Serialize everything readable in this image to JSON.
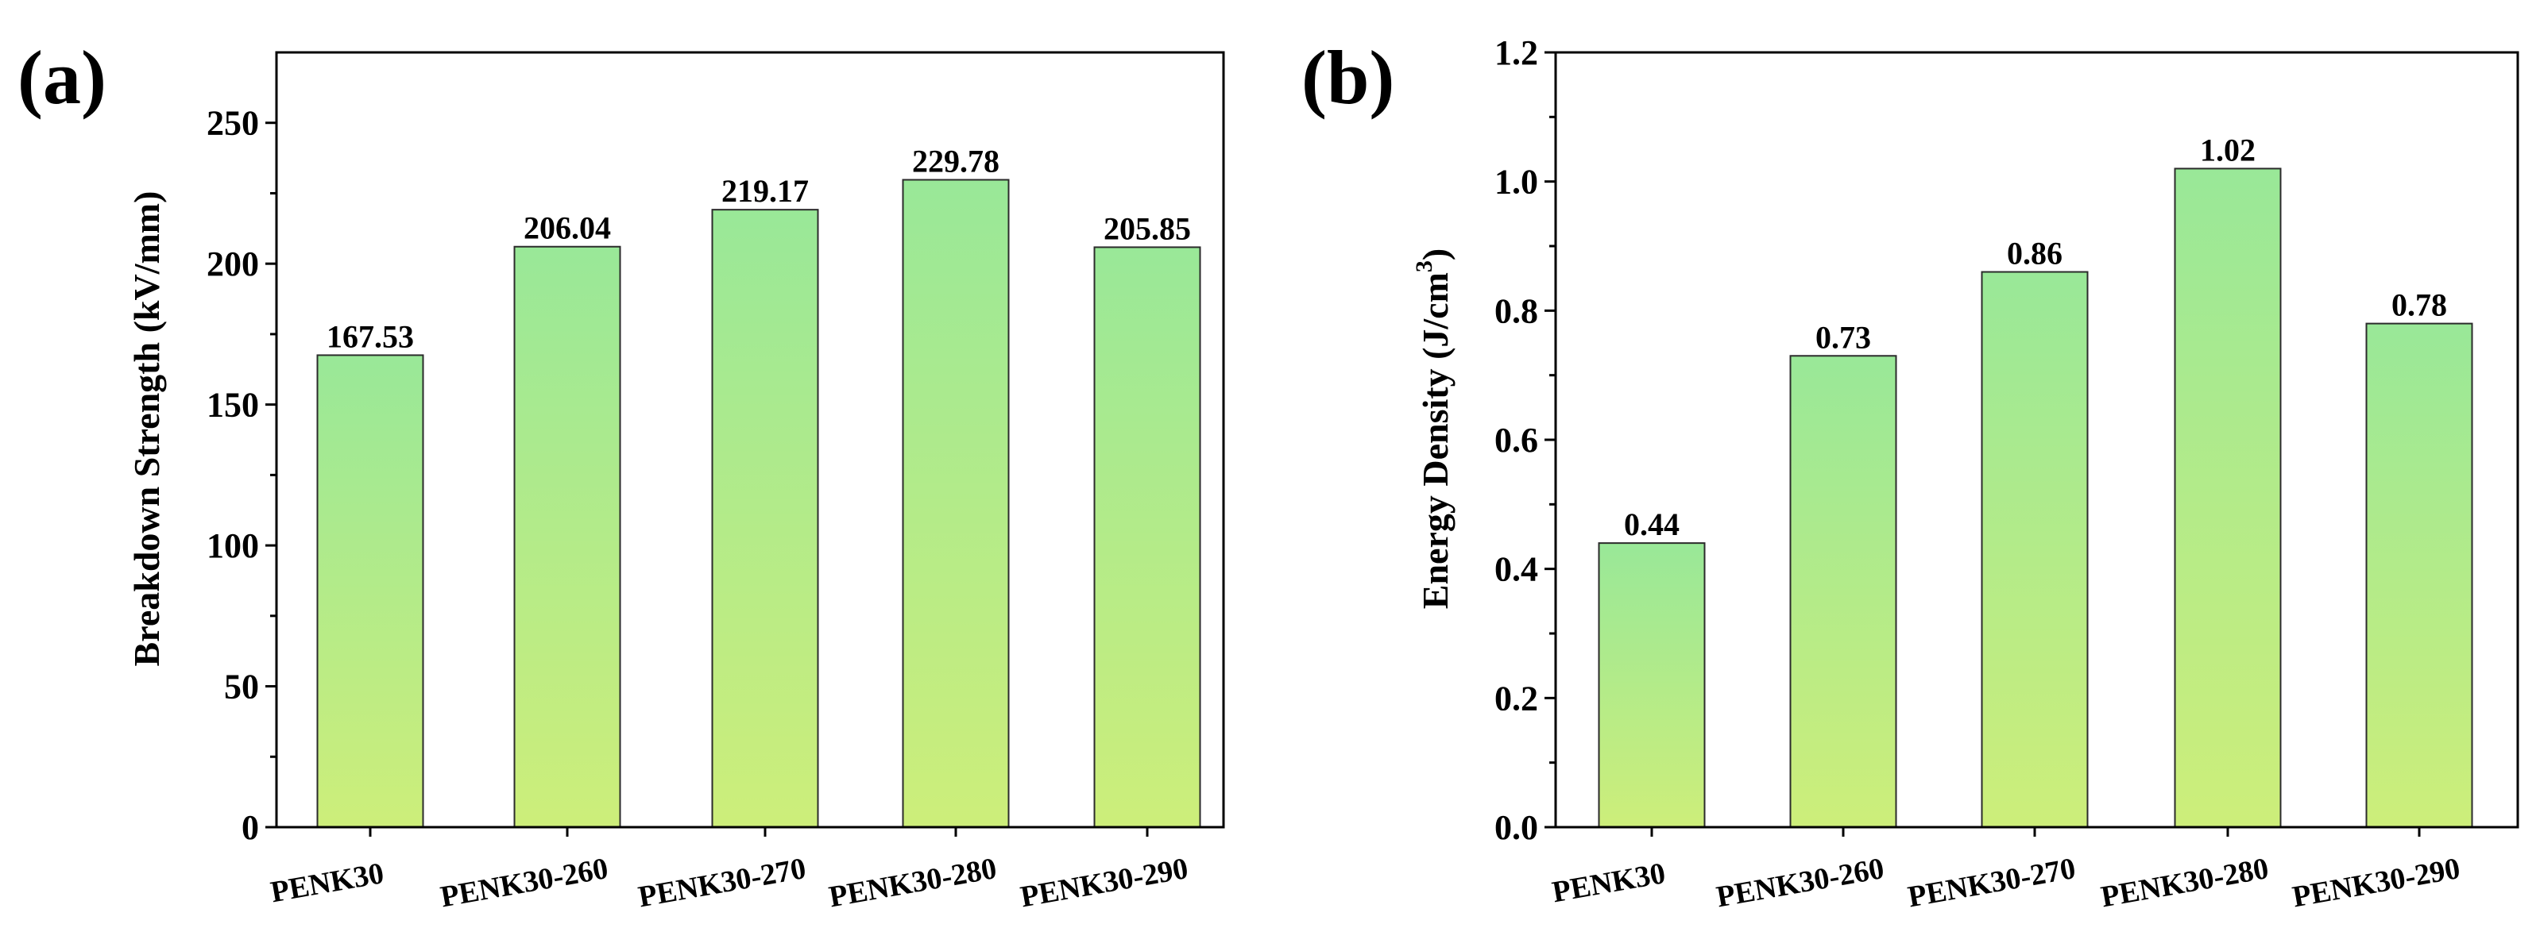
{
  "bar_gradient": {
    "top": "#99e898",
    "bottom": "#cdee7a",
    "stroke": "#2b2b2b"
  },
  "chart_data": [
    {
      "type": "bar",
      "panel_label": "(a)",
      "title": "",
      "xlabel": "",
      "ylabel": "Breakdown Strength (kV/mm)",
      "categories": [
        "PENK30",
        "PENK30-260",
        "PENK30-270",
        "PENK30-280",
        "PENK30-290"
      ],
      "values": [
        167.53,
        206.04,
        219.17,
        229.78,
        205.85
      ],
      "data_labels": [
        "167.53",
        "206.04",
        "219.17",
        "229.78",
        "205.85"
      ],
      "ylim": [
        0,
        275
      ],
      "yticks": [
        0,
        50,
        100,
        150,
        200,
        250
      ],
      "ytick_labels": [
        "0",
        "50",
        "100",
        "150",
        "200",
        "250"
      ],
      "grid": false,
      "legend": "none"
    },
    {
      "type": "bar",
      "panel_label": "(b)",
      "title": "",
      "xlabel": "",
      "ylabel": "Energy Density (J/cm",
      "ylabel_superscript": "3",
      "ylabel_suffix": ")",
      "categories": [
        "PENK30",
        "PENK30-260",
        "PENK30-270",
        "PENK30-280",
        "PENK30-290"
      ],
      "values": [
        0.44,
        0.73,
        0.86,
        1.02,
        0.78
      ],
      "data_labels": [
        "0.44",
        "0.73",
        "0.86",
        "1.02",
        "0.78"
      ],
      "ylim": [
        0,
        1.2
      ],
      "yticks": [
        0,
        0.2,
        0.4,
        0.6,
        0.8,
        1.0,
        1.2
      ],
      "ytick_labels": [
        "0.0",
        "0.2",
        "0.4",
        "0.6",
        "0.8",
        "1.0",
        "1.2"
      ],
      "grid": false,
      "legend": "none"
    }
  ]
}
